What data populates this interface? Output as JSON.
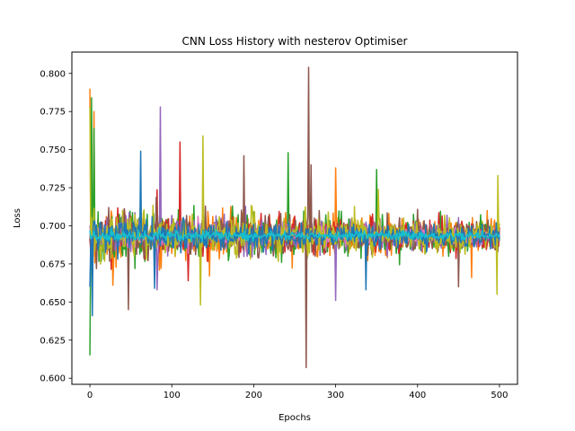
{
  "chart_data": {
    "type": "line",
    "title": "CNN Loss History with nesterov Optimiser",
    "xlabel": "Epochs",
    "ylabel": "Loss",
    "xlim": [
      -22,
      522
    ],
    "ylim": [
      0.596,
      0.814
    ],
    "xticks": [
      0,
      100,
      200,
      300,
      400,
      500
    ],
    "yticks": [
      0.6,
      0.625,
      0.65,
      0.675,
      0.7,
      0.725,
      0.75,
      0.775,
      0.8
    ],
    "ytick_labels": [
      "0.600",
      "0.625",
      "0.650",
      "0.675",
      "0.700",
      "0.725",
      "0.750",
      "0.775",
      "0.800"
    ],
    "grid": false,
    "legend": "none",
    "epochs": 501,
    "series": [
      {
        "color": "#ff7f0e",
        "center": 0.6935,
        "spread": 0.014,
        "start": 0.79,
        "spikes": [
          [
            5,
            0.775
          ],
          [
            28,
            0.661
          ],
          [
            300,
            0.738
          ],
          [
            466,
            0.666
          ]
        ]
      },
      {
        "color": "#2ca02c",
        "center": 0.6935,
        "spread": 0.014,
        "start": 0.615,
        "spikes": [
          [
            0,
            0.615
          ],
          [
            2,
            0.784
          ],
          [
            5,
            0.764
          ],
          [
            242,
            0.748
          ],
          [
            350,
            0.737
          ]
        ]
      },
      {
        "color": "#d62728",
        "center": 0.6935,
        "spread": 0.012,
        "start": 0.692,
        "spikes": [
          [
            110,
            0.755
          ],
          [
            120,
            0.664
          ],
          [
            395,
            0.703
          ]
        ]
      },
      {
        "color": "#9467bd",
        "center": 0.6935,
        "spread": 0.011,
        "start": 0.7,
        "spikes": [
          [
            86,
            0.778
          ],
          [
            82,
            0.658
          ],
          [
            300,
            0.651
          ]
        ]
      },
      {
        "color": "#8c564b",
        "center": 0.6935,
        "spread": 0.013,
        "start": 0.69,
        "spikes": [
          [
            47,
            0.645
          ],
          [
            188,
            0.746
          ],
          [
            264,
            0.607
          ],
          [
            267,
            0.804
          ],
          [
            270,
            0.74
          ],
          [
            450,
            0.66
          ]
        ]
      },
      {
        "color": "#e377c2",
        "center": 0.6935,
        "spread": 0.006,
        "start": 0.699,
        "spikes": []
      },
      {
        "color": "#7f7f7f",
        "center": 0.6935,
        "spread": 0.004,
        "start": 0.694,
        "spikes": []
      },
      {
        "color": "#bcbd22",
        "center": 0.6935,
        "spread": 0.013,
        "start": 0.778,
        "spikes": [
          [
            138,
            0.759
          ],
          [
            135,
            0.648
          ],
          [
            352,
            0.724
          ],
          [
            497,
            0.655
          ],
          [
            498,
            0.733
          ]
        ]
      },
      {
        "color": "#1f77b4",
        "center": 0.6935,
        "spread": 0.008,
        "start": 0.66,
        "spikes": [
          [
            3,
            0.641
          ],
          [
            62,
            0.749
          ],
          [
            79,
            0.659
          ],
          [
            337,
            0.658
          ]
        ]
      },
      {
        "color": "#17becf",
        "center": 0.6935,
        "spread": 0.003,
        "start": 0.697,
        "spikes": []
      }
    ]
  }
}
